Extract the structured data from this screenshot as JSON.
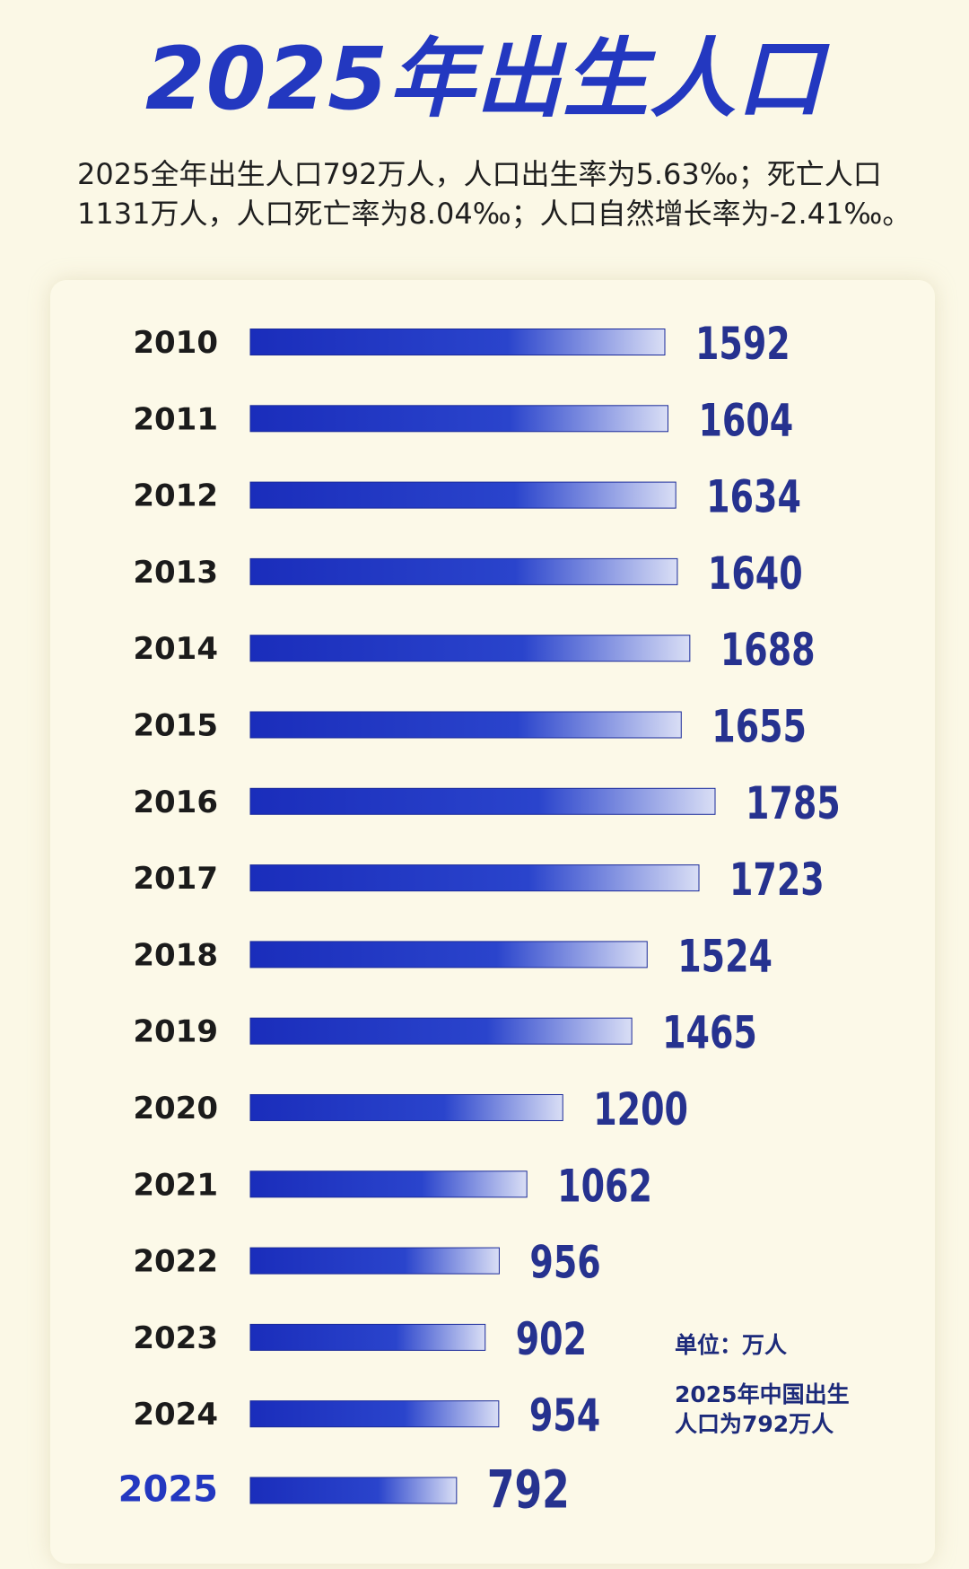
{
  "title": "2025年出生人口",
  "summary": {
    "line1": "2025全年出生人口792万人，人口出生率为5.63‰；死亡人口",
    "line2": "1131万人，人口死亡率为8.04‰；人口自然增长率为-2.41‰。"
  },
  "notes": {
    "unit": "单位：万人",
    "caption_line1": "2025年中国出生",
    "caption_line2": "人口为792万人"
  },
  "colors": {
    "background": "#fbf8e6",
    "title": "#2338c0",
    "bar_start": "#1a2dbb",
    "bar_end": "#d9def5",
    "value_label": "#26328f",
    "highlight_year": "#2338c0"
  },
  "chart_data": {
    "type": "bar",
    "orientation": "horizontal",
    "title": "2025年出生人口",
    "unit": "万人",
    "categories": [
      "2010",
      "2011",
      "2012",
      "2013",
      "2014",
      "2015",
      "2016",
      "2017",
      "2018",
      "2019",
      "2020",
      "2021",
      "2022",
      "2023",
      "2024",
      "2025"
    ],
    "values": [
      1592,
      1604,
      1634,
      1640,
      1688,
      1655,
      1785,
      1723,
      1524,
      1465,
      1200,
      1062,
      956,
      902,
      954,
      792
    ],
    "highlight_category": "2025",
    "data_labels": true,
    "grid": false,
    "legend": "none"
  }
}
